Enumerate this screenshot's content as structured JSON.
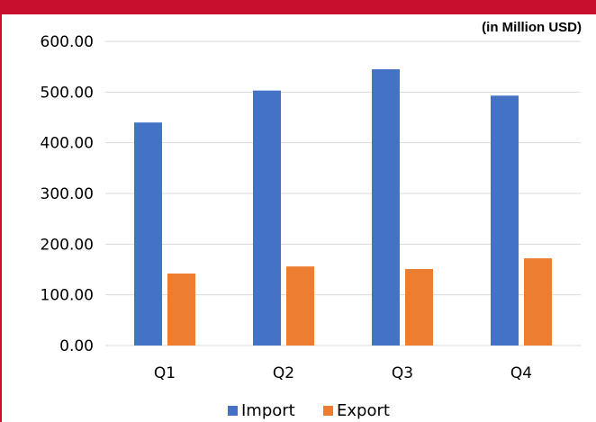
{
  "header": {
    "unit_note": "(in Million USD)",
    "accent_color": "#c8102e"
  },
  "chart_data": {
    "type": "bar",
    "categories": [
      "Q1",
      "Q2",
      "Q3",
      "Q4"
    ],
    "series": [
      {
        "name": "Import",
        "color": "#4472c4",
        "values": [
          440,
          503,
          545,
          493
        ]
      },
      {
        "name": "Export",
        "color": "#ed7d31",
        "values": [
          142,
          156,
          151,
          172
        ]
      }
    ],
    "ylim": [
      0,
      600
    ],
    "yticks": [
      0,
      100,
      200,
      300,
      400,
      500,
      600
    ],
    "ytick_labels": [
      "0.00",
      "100.00",
      "200.00",
      "300.00",
      "400.00",
      "500.00",
      "600.00"
    ],
    "grid": true,
    "grid_color": "#d9d9d9",
    "legend_position": "bottom",
    "legend": [
      "Import",
      "Export"
    ]
  }
}
